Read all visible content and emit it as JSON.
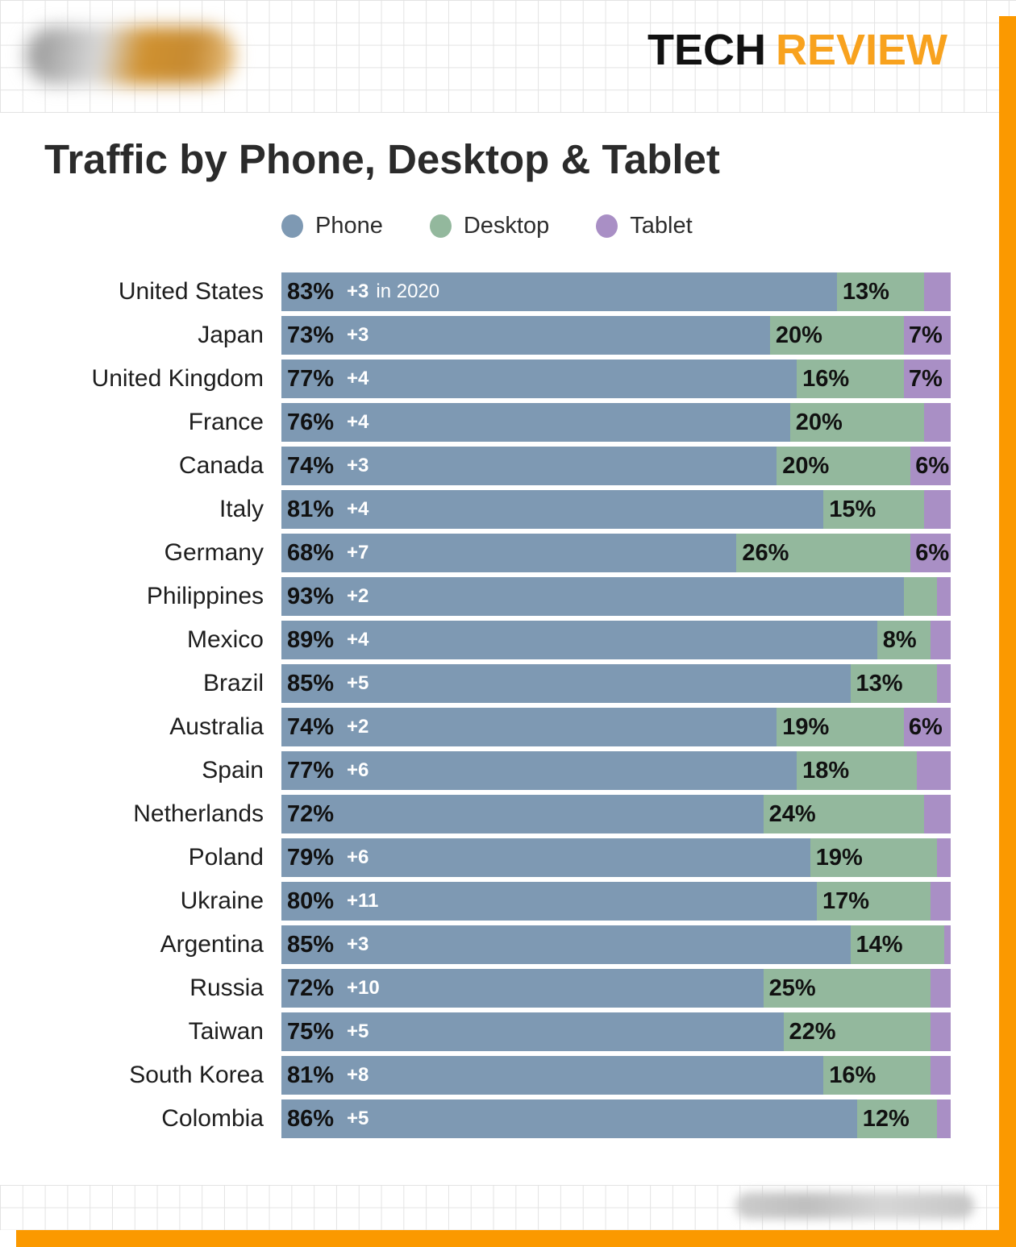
{
  "header": {
    "brand_black": "TECH",
    "brand_orange": "REVIEW",
    "logo": "blurred-logo-pill",
    "source": "blurred-source-text"
  },
  "title": "Traffic by Phone, Desktop & Tablet",
  "colors": {
    "phone": "#7E99B3",
    "desktop": "#93B89D",
    "tablet": "#A98FC5",
    "frame_orange": "#FB9900",
    "brand_orange": "#F8A21E",
    "grid_line": "#e3e3e3",
    "text_dark": "#111111"
  },
  "legend": [
    {
      "label": "Phone",
      "color": "#7E99B3"
    },
    {
      "label": "Desktop",
      "color": "#93B89D"
    },
    {
      "label": "Tablet",
      "color": "#A98FC5"
    }
  ],
  "chart_data": {
    "type": "bar",
    "stacked": true,
    "orientation": "horizontal",
    "unit": "%",
    "series_names": [
      "Phone",
      "Desktop",
      "Tablet"
    ],
    "note": "change values are year-over-year phone share change, first row annotated 'in 2020'; tablet values without labels are inferred remainders to 100%",
    "rows": [
      {
        "country": "United States",
        "phone": 83,
        "phone_label": "83%",
        "change": "+3",
        "change_suffix": "in 2020",
        "desktop": 13,
        "desktop_label": "13%",
        "tablet": 4,
        "tablet_label": ""
      },
      {
        "country": "Japan",
        "phone": 73,
        "phone_label": "73%",
        "change": "+3",
        "change_suffix": "",
        "desktop": 20,
        "desktop_label": "20%",
        "tablet": 7,
        "tablet_label": "7%"
      },
      {
        "country": "United Kingdom",
        "phone": 77,
        "phone_label": "77%",
        "change": "+4",
        "change_suffix": "",
        "desktop": 16,
        "desktop_label": "16%",
        "tablet": 7,
        "tablet_label": "7%"
      },
      {
        "country": "France",
        "phone": 76,
        "phone_label": "76%",
        "change": "+4",
        "change_suffix": "",
        "desktop": 20,
        "desktop_label": "20%",
        "tablet": 4,
        "tablet_label": ""
      },
      {
        "country": "Canada",
        "phone": 74,
        "phone_label": "74%",
        "change": "+3",
        "change_suffix": "",
        "desktop": 20,
        "desktop_label": "20%",
        "tablet": 6,
        "tablet_label": "6%"
      },
      {
        "country": "Italy",
        "phone": 81,
        "phone_label": "81%",
        "change": "+4",
        "change_suffix": "",
        "desktop": 15,
        "desktop_label": "15%",
        "tablet": 4,
        "tablet_label": ""
      },
      {
        "country": "Germany",
        "phone": 68,
        "phone_label": "68%",
        "change": "+7",
        "change_suffix": "",
        "desktop": 26,
        "desktop_label": "26%",
        "tablet": 6,
        "tablet_label": "6%"
      },
      {
        "country": "Philippines",
        "phone": 93,
        "phone_label": "93%",
        "change": "+2",
        "change_suffix": "",
        "desktop": 5,
        "desktop_label": "",
        "tablet": 2,
        "tablet_label": ""
      },
      {
        "country": "Mexico",
        "phone": 89,
        "phone_label": "89%",
        "change": "+4",
        "change_suffix": "",
        "desktop": 8,
        "desktop_label": "8%",
        "tablet": 3,
        "tablet_label": ""
      },
      {
        "country": "Brazil",
        "phone": 85,
        "phone_label": "85%",
        "change": "+5",
        "change_suffix": "",
        "desktop": 13,
        "desktop_label": "13%",
        "tablet": 2,
        "tablet_label": ""
      },
      {
        "country": "Australia",
        "phone": 74,
        "phone_label": "74%",
        "change": "+2",
        "change_suffix": "",
        "desktop": 19,
        "desktop_label": "19%",
        "tablet": 6,
        "tablet_label": "6%"
      },
      {
        "country": "Spain",
        "phone": 77,
        "phone_label": "77%",
        "change": "+6",
        "change_suffix": "",
        "desktop": 18,
        "desktop_label": "18%",
        "tablet": 5,
        "tablet_label": ""
      },
      {
        "country": "Netherlands",
        "phone": 72,
        "phone_label": "72%",
        "change": "",
        "change_suffix": "",
        "desktop": 24,
        "desktop_label": "24%",
        "tablet": 4,
        "tablet_label": ""
      },
      {
        "country": "Poland",
        "phone": 79,
        "phone_label": "79%",
        "change": "+6",
        "change_suffix": "",
        "desktop": 19,
        "desktop_label": "19%",
        "tablet": 2,
        "tablet_label": ""
      },
      {
        "country": "Ukraine",
        "phone": 80,
        "phone_label": "80%",
        "change": "+11",
        "change_suffix": "",
        "desktop": 17,
        "desktop_label": "17%",
        "tablet": 3,
        "tablet_label": ""
      },
      {
        "country": "Argentina",
        "phone": 85,
        "phone_label": "85%",
        "change": "+3",
        "change_suffix": "",
        "desktop": 14,
        "desktop_label": "14%",
        "tablet": 1,
        "tablet_label": ""
      },
      {
        "country": "Russia",
        "phone": 72,
        "phone_label": "72%",
        "change": "+10",
        "change_suffix": "",
        "desktop": 25,
        "desktop_label": "25%",
        "tablet": 3,
        "tablet_label": ""
      },
      {
        "country": "Taiwan",
        "phone": 75,
        "phone_label": "75%",
        "change": "+5",
        "change_suffix": "",
        "desktop": 22,
        "desktop_label": "22%",
        "tablet": 3,
        "tablet_label": ""
      },
      {
        "country": "South Korea",
        "phone": 81,
        "phone_label": "81%",
        "change": "+8",
        "change_suffix": "",
        "desktop": 16,
        "desktop_label": "16%",
        "tablet": 3,
        "tablet_label": ""
      },
      {
        "country": "Colombia",
        "phone": 86,
        "phone_label": "86%",
        "change": "+5",
        "change_suffix": "",
        "desktop": 12,
        "desktop_label": "12%",
        "tablet": 2,
        "tablet_label": ""
      }
    ]
  }
}
